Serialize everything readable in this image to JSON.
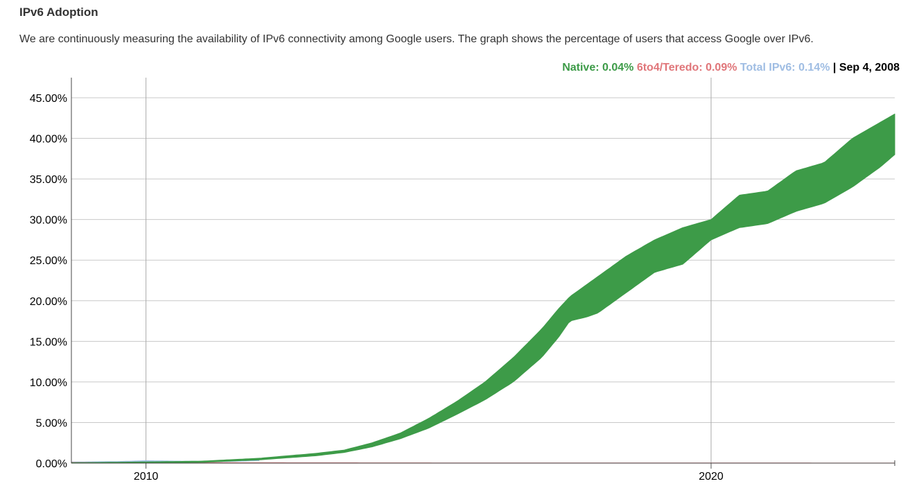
{
  "header": {
    "title": "IPv6 Adoption",
    "description": "We are continuously measuring the availability of IPv6 connectivity among Google users. The graph shows the percentage of users that access Google over IPv6."
  },
  "legend": {
    "native": "Native: 0.04%",
    "teredo": "6to4/Teredo: 0.09%",
    "total": "Total IPv6: 0.14%",
    "separator": "|",
    "date": "Sep 4, 2008"
  },
  "colors": {
    "native": "#3d9b48",
    "teredo": "#e0767a",
    "total": "#9fbde3",
    "grid": "#c8c8c8"
  },
  "chart_data": {
    "type": "area",
    "title": "",
    "xlabel": "",
    "ylabel": "",
    "xlim": [
      2008.68,
      2023.25
    ],
    "ylim": [
      0,
      45
    ],
    "y_ticks": [
      "0.00%",
      "5.00%",
      "10.00%",
      "15.00%",
      "20.00%",
      "25.00%",
      "30.00%",
      "35.00%",
      "40.00%",
      "45.00%"
    ],
    "x_ticks": [
      {
        "value": 2010,
        "label": "2010"
      },
      {
        "value": 2020,
        "label": "2020"
      }
    ],
    "grid": true,
    "legend_position": "top-right",
    "series": [
      {
        "name": "Native",
        "x": [
          2008.68,
          2010,
          2011,
          2012,
          2013,
          2013.5,
          2014,
          2014.5,
          2015,
          2015.5,
          2016,
          2016.5,
          2017,
          2017.3,
          2017.5,
          2017.8,
          2018,
          2018.5,
          2019,
          2019.5,
          2020,
          2020.5,
          2021,
          2021.5,
          2022,
          2022.5,
          2023,
          2023.25
        ],
        "low": [
          0.02,
          0.05,
          0.1,
          0.4,
          0.9,
          1.3,
          2.0,
          3.0,
          4.3,
          6.0,
          7.8,
          10.0,
          13.0,
          15.5,
          17.5,
          18.0,
          18.5,
          21.0,
          23.5,
          24.5,
          27.5,
          29.0,
          29.5,
          31.0,
          32.0,
          34.0,
          36.5,
          38.0
        ],
        "high": [
          0.05,
          0.15,
          0.25,
          0.6,
          1.2,
          1.6,
          2.5,
          3.7,
          5.5,
          7.6,
          10.0,
          13.0,
          16.5,
          19.0,
          20.5,
          22.0,
          23.0,
          25.5,
          27.5,
          29.0,
          30.0,
          33.0,
          33.5,
          36.0,
          37.0,
          40.0,
          42.0,
          43.0
        ]
      },
      {
        "name": "6to4/Teredo",
        "x": [
          2008.68,
          2010,
          2012,
          2015,
          2018,
          2023.25
        ],
        "low": [
          0.0,
          0.0,
          0.0,
          0.0,
          0.0,
          0.0
        ],
        "high": [
          0.09,
          0.08,
          0.05,
          0.03,
          0.02,
          0.01
        ]
      },
      {
        "name": "Total IPv6",
        "x": [
          2008.68,
          2009.5,
          2010,
          2010.5,
          2011,
          2012
        ],
        "low": [
          0.1,
          0.12,
          0.15,
          0.14,
          0.12,
          0.3
        ],
        "high": [
          0.14,
          0.2,
          0.3,
          0.25,
          0.22,
          0.5
        ]
      }
    ]
  }
}
